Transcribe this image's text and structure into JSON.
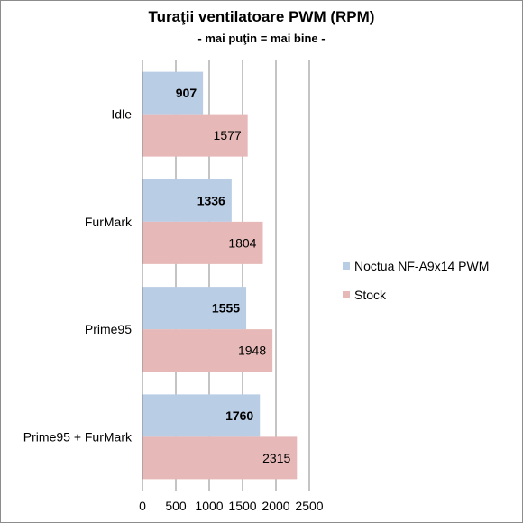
{
  "chart_data": {
    "type": "bar",
    "orientation": "horizontal",
    "title": "Turaţii ventilatoare PWM (RPM)",
    "subtitle": "- mai puţin = mai bine -",
    "categories": [
      "Idle",
      "FurMark",
      "Prime95",
      "Prime95 + FurMark"
    ],
    "series": [
      {
        "name": "Noctua NF-A9x14 PWM",
        "values": [
          907,
          1336,
          1555,
          1760
        ],
        "color": "#b9cde5",
        "label_bold": true
      },
      {
        "name": "Stock",
        "values": [
          1577,
          1804,
          1948,
          2315
        ],
        "color": "#e6b9b8",
        "label_bold": false
      }
    ],
    "xlim": [
      0,
      2500
    ],
    "xticks": [
      "0",
      "500",
      "1000",
      "1500",
      "2000",
      "2500"
    ],
    "grid": true,
    "legend_position": "right"
  }
}
